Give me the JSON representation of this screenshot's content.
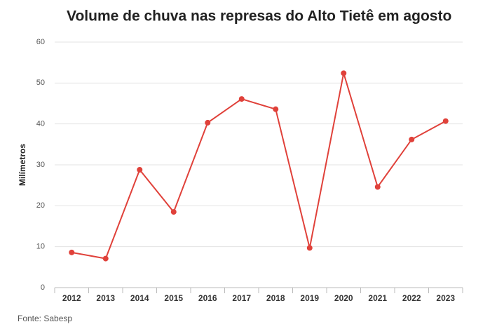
{
  "chart_data": {
    "type": "line",
    "title": "Volume de chuva nas represas do Alto Tietê em agosto",
    "y_label": "Milímetros",
    "source": "Fonte: Sabesp",
    "categories": [
      "2012",
      "2013",
      "2014",
      "2015",
      "2016",
      "2017",
      "2018",
      "2019",
      "2020",
      "2021",
      "2022",
      "2023"
    ],
    "series": [
      {
        "name": "Volume de chuva",
        "color": "#e0413a",
        "values": [
          8.6,
          7.1,
          28.8,
          18.5,
          40.3,
          46.1,
          43.6,
          9.7,
          52.4,
          24.6,
          36.2,
          40.7
        ]
      }
    ],
    "ylim": [
      0,
      60
    ],
    "yticks": [
      0,
      10,
      20,
      30,
      40,
      50,
      60
    ],
    "grid": true
  }
}
